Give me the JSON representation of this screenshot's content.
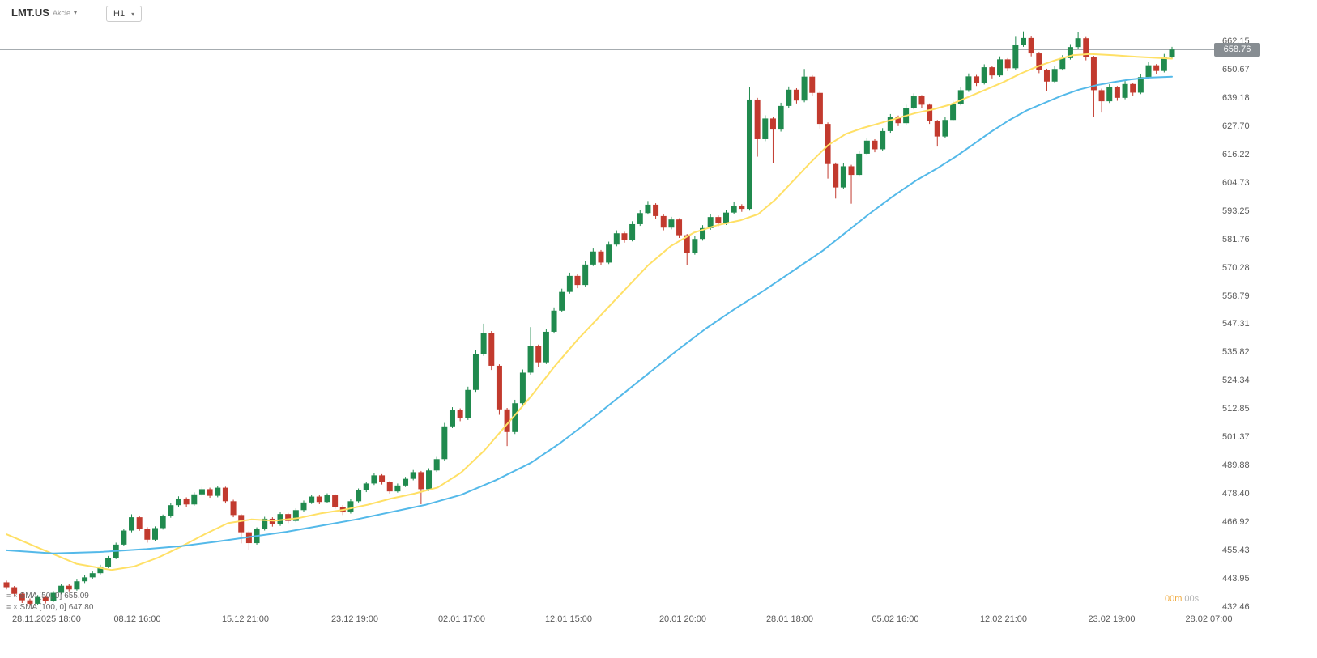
{
  "header": {
    "symbol": "LMT.US",
    "instrument_type": "Akcie",
    "timeframe": "H1"
  },
  "price_badge": "658.76",
  "countdown": {
    "minutes": "00m",
    "seconds": "00s"
  },
  "legend": [
    {
      "label": "SMA [50, 0]",
      "value": "655.09"
    },
    {
      "label": "SMA [100, 0]",
      "value": "647.80"
    }
  ],
  "colors": {
    "up": "#208a4e",
    "down": "#c23a2e",
    "sma50": "#ffe066",
    "sma100": "#54b9e9",
    "price_line": "#9aa0a5",
    "badge_bg": "#878d92",
    "axis_text": "#5a5a5a",
    "countdown_minutes": "#f0a93c",
    "countdown_seconds": "#b5b5b5"
  },
  "chart_data": {
    "type": "candlestick",
    "title": "LMT.US H1",
    "current_price": 658.76,
    "ylim": [
      430.5,
      679.0
    ],
    "grid": "off",
    "legend_position": "bottom-left",
    "y_ticks": [
      662.15,
      650.67,
      639.18,
      627.7,
      616.22,
      604.73,
      593.25,
      581.76,
      570.28,
      558.79,
      547.31,
      535.82,
      524.34,
      512.85,
      501.37,
      489.88,
      478.4,
      466.92,
      455.43,
      443.95,
      432.46
    ],
    "x_ticks": [
      {
        "label": "28.11.2025 18:00",
        "pos": 0.01
      },
      {
        "label": "08.12 16:00",
        "pos": 0.113
      },
      {
        "label": "15.12 21:00",
        "pos": 0.202
      },
      {
        "label": "23.12 19:00",
        "pos": 0.292
      },
      {
        "label": "02.01 17:00",
        "pos": 0.38
      },
      {
        "label": "12.01 15:00",
        "pos": 0.468
      },
      {
        "label": "20.01 20:00",
        "pos": 0.562
      },
      {
        "label": "28.01 18:00",
        "pos": 0.65
      },
      {
        "label": "05.02 16:00",
        "pos": 0.737
      },
      {
        "label": "12.02 21:00",
        "pos": 0.826
      },
      {
        "label": "23.02 19:00",
        "pos": 0.915
      },
      {
        "label": "28.02 07:00",
        "pos": 0.995
      }
    ],
    "candle_format": [
      "open",
      "high",
      "low",
      "close"
    ],
    "candles": [
      [
        442.5,
        443.2,
        439.6,
        440.5
      ],
      [
        440.5,
        441.0,
        436.9,
        437.8
      ],
      [
        437.8,
        438.4,
        434.1,
        435.2
      ],
      [
        435.2,
        435.9,
        432.8,
        433.8
      ],
      [
        433.8,
        437.3,
        433.2,
        436.5
      ],
      [
        436.5,
        437.1,
        433.9,
        434.9
      ],
      [
        434.9,
        438.9,
        434.5,
        438.2
      ],
      [
        438.2,
        441.8,
        437.6,
        441.1
      ],
      [
        441.1,
        441.9,
        438.8,
        439.6
      ],
      [
        439.6,
        443.6,
        439.1,
        442.9
      ],
      [
        442.9,
        445.3,
        442.2,
        444.5
      ],
      [
        444.5,
        446.9,
        443.8,
        446.2
      ],
      [
        446.2,
        449.6,
        445.7,
        448.9
      ],
      [
        448.9,
        453.2,
        448.3,
        452.4
      ],
      [
        452.4,
        458.6,
        451.9,
        457.8
      ],
      [
        457.8,
        464.3,
        457.2,
        463.5
      ],
      [
        463.5,
        470.1,
        462.8,
        468.9
      ],
      [
        468.9,
        469.5,
        463.4,
        464.2
      ],
      [
        464.2,
        464.9,
        458.6,
        459.8
      ],
      [
        459.8,
        465.2,
        459.3,
        464.5
      ],
      [
        464.5,
        470.0,
        463.9,
        469.3
      ],
      [
        469.3,
        474.6,
        468.7,
        473.8
      ],
      [
        473.8,
        477.4,
        473.1,
        476.5
      ],
      [
        476.5,
        477.0,
        473.2,
        474.1
      ],
      [
        474.1,
        479.0,
        473.6,
        478.2
      ],
      [
        478.2,
        481.2,
        477.5,
        480.3
      ],
      [
        480.3,
        480.9,
        476.8,
        477.6
      ],
      [
        477.6,
        481.7,
        477.0,
        480.9
      ],
      [
        480.9,
        481.3,
        474.5,
        475.4
      ],
      [
        475.4,
        476.0,
        468.9,
        469.8
      ],
      [
        469.8,
        470.2,
        458.3,
        462.8
      ],
      [
        462.8,
        463.3,
        455.6,
        458.4
      ],
      [
        458.4,
        464.8,
        457.8,
        464.1
      ],
      [
        464.1,
        469.1,
        463.5,
        468.3
      ],
      [
        468.3,
        468.9,
        465.1,
        466.0
      ],
      [
        466.0,
        471.0,
        465.4,
        470.2
      ],
      [
        470.2,
        470.7,
        466.5,
        467.4
      ],
      [
        467.4,
        472.5,
        466.9,
        471.8
      ],
      [
        471.8,
        475.7,
        471.2,
        474.9
      ],
      [
        474.9,
        478.1,
        474.3,
        477.3
      ],
      [
        477.3,
        477.9,
        474.2,
        475.1
      ],
      [
        475.1,
        478.6,
        474.6,
        477.8
      ],
      [
        477.8,
        478.3,
        472.3,
        473.2
      ],
      [
        473.2,
        473.8,
        469.8,
        470.9
      ],
      [
        470.9,
        476.2,
        470.4,
        475.4
      ],
      [
        475.4,
        480.6,
        474.9,
        479.8
      ],
      [
        479.8,
        483.4,
        479.1,
        482.6
      ],
      [
        482.6,
        486.8,
        482.0,
        485.9
      ],
      [
        485.9,
        486.4,
        482.2,
        483.1
      ],
      [
        483.1,
        483.6,
        478.5,
        479.4
      ],
      [
        479.4,
        482.6,
        478.9,
        481.8
      ],
      [
        481.8,
        485.3,
        481.2,
        484.5
      ],
      [
        484.5,
        488.1,
        483.9,
        487.2
      ],
      [
        487.2,
        487.7,
        474.2,
        480.3
      ],
      [
        480.3,
        488.8,
        479.6,
        487.9
      ],
      [
        487.9,
        493.4,
        487.3,
        492.5
      ],
      [
        492.5,
        507.2,
        491.8,
        505.8
      ],
      [
        505.8,
        513.6,
        505.1,
        512.4
      ],
      [
        512.4,
        513.1,
        507.9,
        509.1
      ],
      [
        509.1,
        521.9,
        508.4,
        520.6
      ],
      [
        520.6,
        536.8,
        519.8,
        535.2
      ],
      [
        535.2,
        547.5,
        534.4,
        543.8
      ],
      [
        543.8,
        544.5,
        528.7,
        530.4
      ],
      [
        530.4,
        531.0,
        510.5,
        512.7
      ],
      [
        512.7,
        513.3,
        497.8,
        503.5
      ],
      [
        503.5,
        516.6,
        502.7,
        515.2
      ],
      [
        515.2,
        528.9,
        514.5,
        527.6
      ],
      [
        527.6,
        546.1,
        526.8,
        538.4
      ],
      [
        538.4,
        539.0,
        529.9,
        531.8
      ],
      [
        531.8,
        545.5,
        531.1,
        544.2
      ],
      [
        544.2,
        554.1,
        543.5,
        552.8
      ],
      [
        552.8,
        561.7,
        552.1,
        560.4
      ],
      [
        560.4,
        568.2,
        559.7,
        566.9
      ],
      [
        566.9,
        567.5,
        561.9,
        563.2
      ],
      [
        563.2,
        572.8,
        562.6,
        571.5
      ],
      [
        571.5,
        578.0,
        570.9,
        576.8
      ],
      [
        576.8,
        577.4,
        571.2,
        572.3
      ],
      [
        572.3,
        580.8,
        571.7,
        579.6
      ],
      [
        579.6,
        585.4,
        578.9,
        584.2
      ],
      [
        584.2,
        584.8,
        580.4,
        581.5
      ],
      [
        581.5,
        589.1,
        580.9,
        587.9
      ],
      [
        587.9,
        593.6,
        587.2,
        592.4
      ],
      [
        592.4,
        597.3,
        591.8,
        595.8
      ],
      [
        595.8,
        596.4,
        590.1,
        591.2
      ],
      [
        591.2,
        591.8,
        585.4,
        586.5
      ],
      [
        586.5,
        590.9,
        585.8,
        589.8
      ],
      [
        589.8,
        590.3,
        582.3,
        583.4
      ],
      [
        583.4,
        583.9,
        571.4,
        576.2
      ],
      [
        576.2,
        583.1,
        575.5,
        581.9
      ],
      [
        581.9,
        587.5,
        581.2,
        586.3
      ],
      [
        586.3,
        592.0,
        585.6,
        590.8
      ],
      [
        590.8,
        591.4,
        587.1,
        588.2
      ],
      [
        588.2,
        593.8,
        587.6,
        592.6
      ],
      [
        592.6,
        597.1,
        591.9,
        595.4
      ],
      [
        595.4,
        596.0,
        592.9,
        594.1
      ],
      [
        594.1,
        643.5,
        593.4,
        638.5
      ],
      [
        638.5,
        639.2,
        615.3,
        622.4
      ],
      [
        622.4,
        632.1,
        621.6,
        630.8
      ],
      [
        630.8,
        631.4,
        612.8,
        626.3
      ],
      [
        626.3,
        637.2,
        625.5,
        635.9
      ],
      [
        635.9,
        643.8,
        635.2,
        642.5
      ],
      [
        642.5,
        643.1,
        636.9,
        638.1
      ],
      [
        638.1,
        650.9,
        637.4,
        647.8
      ],
      [
        647.8,
        648.4,
        639.9,
        641.2
      ],
      [
        641.2,
        641.8,
        626.7,
        628.6
      ],
      [
        628.6,
        629.2,
        606.4,
        612.3
      ],
      [
        612.3,
        612.9,
        598.3,
        602.8
      ],
      [
        602.8,
        612.7,
        602.1,
        611.4
      ],
      [
        611.4,
        612.0,
        596.2,
        607.9
      ],
      [
        607.9,
        617.8,
        607.2,
        616.5
      ],
      [
        616.5,
        623.0,
        615.8,
        621.8
      ],
      [
        621.8,
        622.4,
        617.1,
        618.3
      ],
      [
        618.3,
        626.9,
        617.7,
        625.7
      ],
      [
        625.7,
        632.6,
        625.0,
        631.4
      ],
      [
        631.4,
        632.0,
        627.7,
        628.9
      ],
      [
        628.9,
        636.4,
        628.3,
        635.2
      ],
      [
        635.2,
        641.0,
        634.5,
        639.8
      ],
      [
        639.8,
        640.3,
        635.2,
        636.4
      ],
      [
        636.4,
        636.9,
        628.6,
        629.7
      ],
      [
        629.7,
        630.2,
        619.4,
        623.5
      ],
      [
        623.5,
        631.4,
        622.8,
        630.2
      ],
      [
        630.2,
        638.0,
        629.6,
        636.8
      ],
      [
        636.8,
        643.5,
        636.1,
        642.3
      ],
      [
        642.3,
        649.1,
        641.6,
        647.9
      ],
      [
        647.9,
        648.5,
        644.0,
        645.2
      ],
      [
        645.2,
        652.8,
        644.6,
        651.6
      ],
      [
        651.6,
        652.1,
        647.1,
        648.3
      ],
      [
        648.3,
        656.0,
        647.7,
        654.8
      ],
      [
        654.8,
        655.3,
        650.0,
        651.2
      ],
      [
        651.2,
        664.0,
        650.6,
        660.8
      ],
      [
        660.8,
        666.2,
        659.9,
        663.5
      ],
      [
        663.5,
        664.1,
        656.0,
        657.2
      ],
      [
        657.2,
        657.8,
        649.2,
        650.4
      ],
      [
        650.4,
        651.0,
        642.1,
        645.8
      ],
      [
        645.8,
        652.1,
        645.2,
        650.9
      ],
      [
        650.9,
        656.5,
        650.3,
        655.3
      ],
      [
        655.3,
        661.0,
        654.7,
        659.8
      ],
      [
        659.8,
        666.0,
        659.1,
        663.4
      ],
      [
        663.4,
        663.9,
        654.4,
        655.7
      ],
      [
        655.7,
        656.2,
        631.4,
        642.3
      ],
      [
        642.3,
        642.9,
        633.2,
        637.8
      ],
      [
        637.8,
        644.7,
        637.1,
        643.5
      ],
      [
        643.5,
        644.0,
        638.0,
        639.2
      ],
      [
        639.2,
        646.0,
        638.6,
        644.8
      ],
      [
        644.8,
        645.3,
        640.1,
        641.3
      ],
      [
        641.3,
        648.8,
        640.7,
        647.6
      ],
      [
        647.6,
        653.6,
        646.9,
        652.4
      ],
      [
        652.4,
        652.9,
        648.9,
        650.1
      ],
      [
        650.1,
        657.0,
        649.5,
        655.8
      ],
      [
        655.8,
        659.9,
        655.2,
        658.8
      ]
    ],
    "overlays": [
      {
        "id": "sma-50",
        "name": "SMA [50, 0]",
        "period": 50,
        "last_value": 655.09,
        "color": "#ffe066",
        "points": [
          [
            0,
            462
          ],
          [
            0.03,
            456
          ],
          [
            0.06,
            450
          ],
          [
            0.09,
            447.5
          ],
          [
            0.11,
            449
          ],
          [
            0.13,
            452.5
          ],
          [
            0.15,
            457
          ],
          [
            0.17,
            462
          ],
          [
            0.19,
            466.5
          ],
          [
            0.21,
            468
          ],
          [
            0.23,
            467.5
          ],
          [
            0.25,
            468.5
          ],
          [
            0.27,
            470.5
          ],
          [
            0.29,
            472
          ],
          [
            0.31,
            474
          ],
          [
            0.33,
            476.5
          ],
          [
            0.35,
            478.5
          ],
          [
            0.37,
            481
          ],
          [
            0.39,
            487
          ],
          [
            0.41,
            496
          ],
          [
            0.43,
            507
          ],
          [
            0.45,
            518
          ],
          [
            0.47,
            530
          ],
          [
            0.49,
            541
          ],
          [
            0.51,
            551
          ],
          [
            0.53,
            561
          ],
          [
            0.55,
            571
          ],
          [
            0.57,
            579
          ],
          [
            0.59,
            584.5
          ],
          [
            0.61,
            587.5
          ],
          [
            0.63,
            589.5
          ],
          [
            0.645,
            592
          ],
          [
            0.66,
            598
          ],
          [
            0.675,
            605.5
          ],
          [
            0.69,
            613
          ],
          [
            0.705,
            620
          ],
          [
            0.72,
            624.5
          ],
          [
            0.735,
            627
          ],
          [
            0.75,
            629
          ],
          [
            0.765,
            631
          ],
          [
            0.78,
            633
          ],
          [
            0.795,
            634.5
          ],
          [
            0.81,
            636.5
          ],
          [
            0.825,
            639.5
          ],
          [
            0.84,
            642.5
          ],
          [
            0.855,
            645.5
          ],
          [
            0.87,
            649
          ],
          [
            0.885,
            652
          ],
          [
            0.9,
            654.5
          ],
          [
            0.915,
            656.5
          ],
          [
            0.93,
            657
          ],
          [
            0.95,
            656.5
          ],
          [
            0.97,
            655.8
          ],
          [
            1,
            655.1
          ]
        ]
      },
      {
        "id": "sma-100",
        "name": "SMA [100, 0]",
        "period": 100,
        "last_value": 647.8,
        "color": "#54b9e9",
        "points": [
          [
            0,
            455.5
          ],
          [
            0.04,
            454.2
          ],
          [
            0.08,
            454.8
          ],
          [
            0.12,
            456
          ],
          [
            0.15,
            457.2
          ],
          [
            0.18,
            459
          ],
          [
            0.21,
            461
          ],
          [
            0.24,
            463
          ],
          [
            0.27,
            465.5
          ],
          [
            0.3,
            468
          ],
          [
            0.33,
            471
          ],
          [
            0.36,
            474
          ],
          [
            0.39,
            478
          ],
          [
            0.42,
            484
          ],
          [
            0.45,
            491
          ],
          [
            0.475,
            499
          ],
          [
            0.5,
            508
          ],
          [
            0.525,
            517.5
          ],
          [
            0.55,
            527
          ],
          [
            0.575,
            536.5
          ],
          [
            0.6,
            545.5
          ],
          [
            0.625,
            553.5
          ],
          [
            0.65,
            561
          ],
          [
            0.675,
            569
          ],
          [
            0.7,
            577
          ],
          [
            0.72,
            584.5
          ],
          [
            0.74,
            592
          ],
          [
            0.76,
            599
          ],
          [
            0.78,
            605.5
          ],
          [
            0.8,
            611
          ],
          [
            0.815,
            615.5
          ],
          [
            0.83,
            620.5
          ],
          [
            0.845,
            625.5
          ],
          [
            0.86,
            630
          ],
          [
            0.875,
            634
          ],
          [
            0.89,
            637
          ],
          [
            0.905,
            640
          ],
          [
            0.92,
            642.5
          ],
          [
            0.935,
            644.3
          ],
          [
            0.95,
            645.6
          ],
          [
            0.965,
            646.7
          ],
          [
            0.98,
            647.4
          ],
          [
            1,
            647.8
          ]
        ]
      }
    ]
  }
}
